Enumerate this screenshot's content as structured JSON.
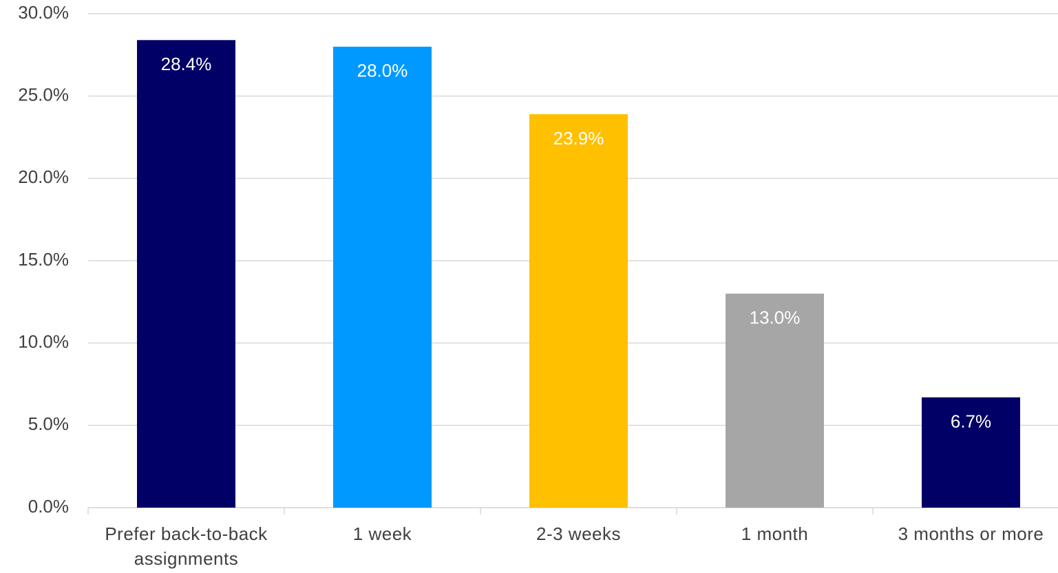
{
  "chart_data": {
    "type": "bar",
    "categories": [
      "Prefer back-to-back assignments",
      "1 week",
      "2-3 weeks",
      "1 month",
      "3 months or more"
    ],
    "values": [
      28.4,
      28.0,
      23.9,
      13.0,
      6.7
    ],
    "value_labels": [
      "28.4%",
      "28.0%",
      "23.9%",
      "13.0%",
      "6.7%"
    ],
    "colors": [
      "#000066",
      "#0099ff",
      "#ffc000",
      "#a6a6a6",
      "#000066"
    ],
    "ylim": [
      0,
      30
    ],
    "yticks": [
      {
        "value": 0,
        "label": "0.0%"
      },
      {
        "value": 5,
        "label": "5.0%"
      },
      {
        "value": 10,
        "label": "10.0%"
      },
      {
        "value": 15,
        "label": "15.0%"
      },
      {
        "value": 20,
        "label": "20.0%"
      },
      {
        "value": 25,
        "label": "25.0%"
      },
      {
        "value": 30,
        "label": "30.0%"
      }
    ],
    "grid": true
  }
}
